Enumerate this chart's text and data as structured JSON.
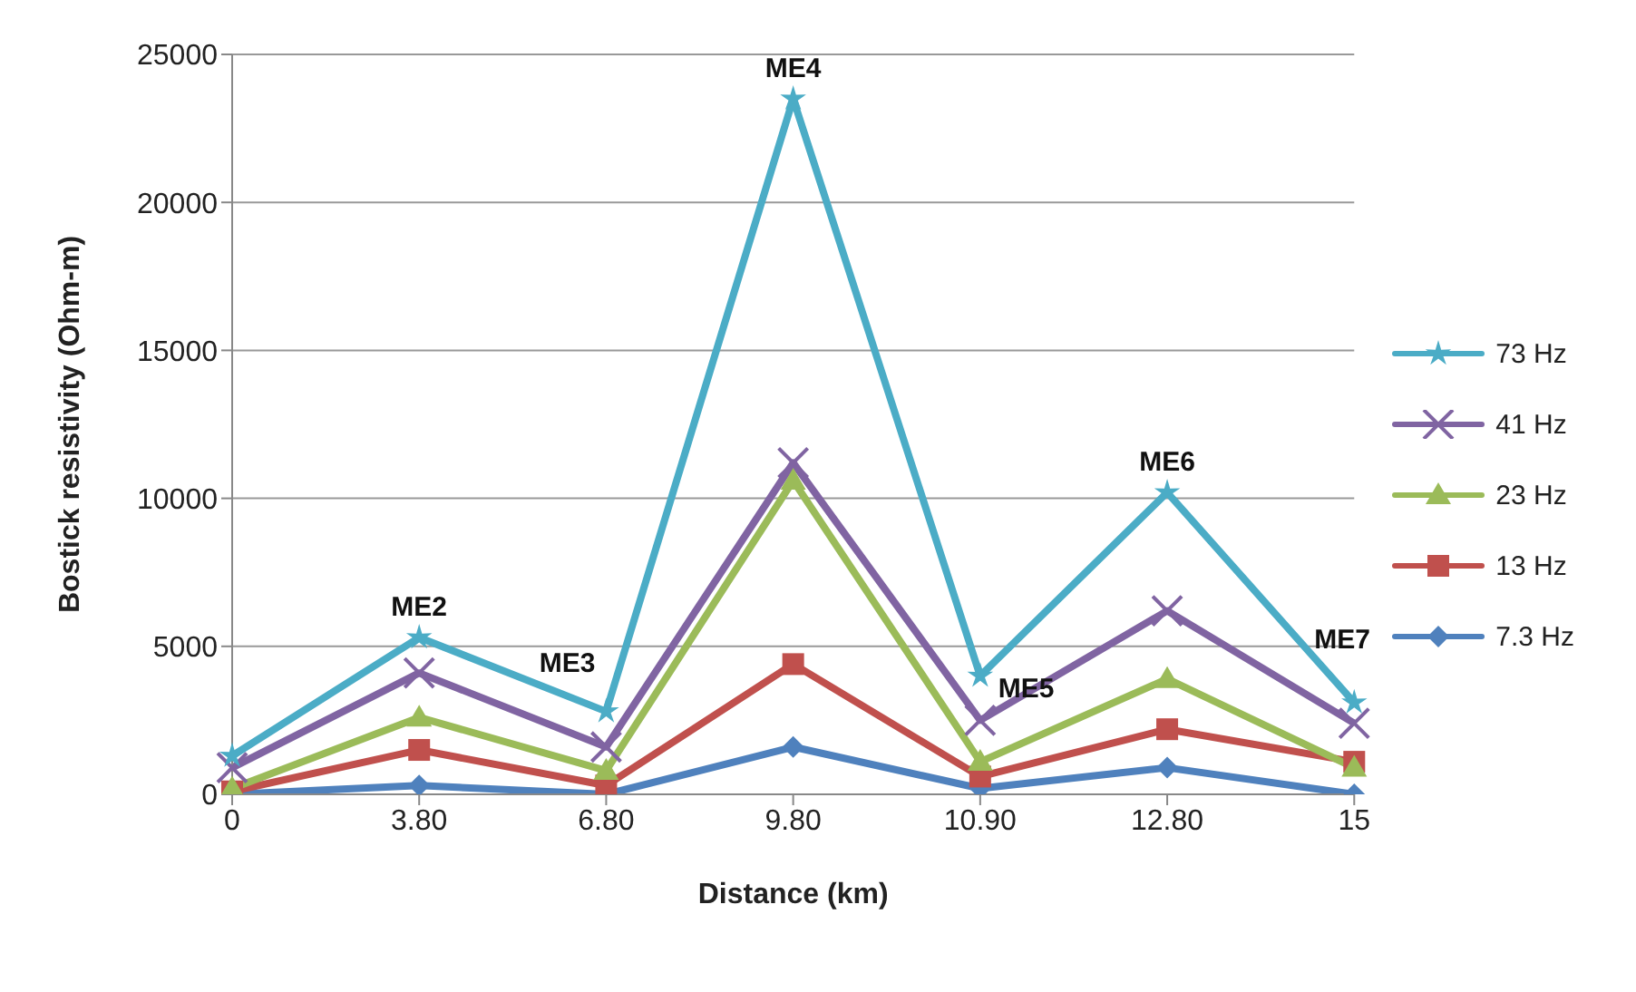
{
  "chart_data": {
    "type": "line",
    "xlabel": "Distance (km)",
    "ylabel": "Bostick resistivity (Ohm-m)",
    "categories": [
      "0",
      "3.80",
      "6.80",
      "9.80",
      "10.90",
      "12.80",
      "15"
    ],
    "series": [
      {
        "name": "73 Hz",
        "color": "#4bacc6",
        "marker": "star",
        "values": [
          1300,
          5300,
          2800,
          23500,
          4000,
          10200,
          3100
        ]
      },
      {
        "name": "41 Hz",
        "color": "#8064a2",
        "marker": "cross",
        "values": [
          900,
          4100,
          1600,
          11200,
          2500,
          6200,
          2400
        ]
      },
      {
        "name": "23 Hz",
        "color": "#9bbb59",
        "marker": "triangle",
        "values": [
          200,
          2600,
          800,
          10600,
          1100,
          3900,
          900
        ]
      },
      {
        "name": "13 Hz",
        "color": "#c0504d",
        "marker": "square",
        "values": [
          100,
          1500,
          300,
          4400,
          600,
          2200,
          1100
        ]
      },
      {
        "name": "7.3 Hz",
        "color": "#4f81bd",
        "marker": "diamond",
        "values": [
          0,
          300,
          0,
          1600,
          200,
          900,
          0
        ]
      }
    ],
    "ylim": [
      0,
      25000
    ],
    "yticks": [
      0,
      5000,
      10000,
      15000,
      20000,
      25000
    ],
    "grid": "y",
    "legend": "right",
    "annotations": [
      {
        "text": "ME2",
        "x": "3.80",
        "y": 5300
      },
      {
        "text": "ME3",
        "x": "6.80",
        "y": 2800
      },
      {
        "text": "ME4",
        "x": "9.80",
        "y": 23500
      },
      {
        "text": "ME5",
        "x": "10.90",
        "y": 4000
      },
      {
        "text": "ME6",
        "x": "12.80",
        "y": 10200
      },
      {
        "text": "ME7",
        "x": "15",
        "y": 3100
      }
    ]
  }
}
